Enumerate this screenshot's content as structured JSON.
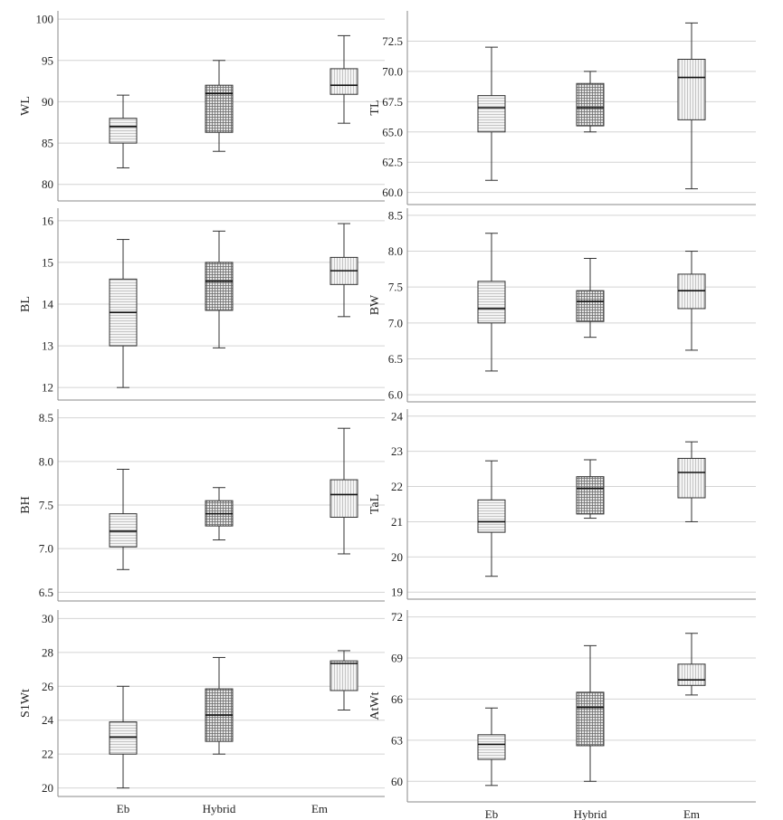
{
  "figure": {
    "categories": [
      "Eb",
      "Hybrid",
      "Em"
    ]
  },
  "colors": {
    "grid": "#d4d4d4",
    "frame": "#8a8a8a",
    "box_fill": "#f4f4f4",
    "box_pattern_light": "#b9b9b9",
    "box_pattern_dark": "#6f6f6f",
    "whisker": "#333333",
    "median": "#111111"
  },
  "chart_data": [
    {
      "type": "box",
      "ylabel": "WL",
      "categories": [
        "Eb",
        "Hybrid",
        "Em"
      ],
      "ylim": [
        78,
        101
      ],
      "yticks": [
        80,
        85,
        90,
        95,
        100
      ],
      "yticklabels": [
        "80",
        "85",
        "90",
        "95",
        "100"
      ],
      "boxes": [
        {
          "category": "Eb",
          "min": 82.0,
          "q1": 85.0,
          "median": 87.0,
          "q3": 88.0,
          "max": 90.8
        },
        {
          "category": "Hybrid",
          "min": 84.0,
          "q1": 86.3,
          "median": 91.0,
          "q3": 92.0,
          "max": 95.0
        },
        {
          "category": "Em",
          "min": 87.4,
          "q1": 90.9,
          "median": 92.0,
          "q3": 94.0,
          "max": 98.0
        }
      ]
    },
    {
      "type": "box",
      "ylabel": "TL",
      "categories": [
        "Eb",
        "Hybrid",
        "Em"
      ],
      "ylim": [
        59.0,
        75.0
      ],
      "yticks": [
        60.0,
        62.5,
        65.0,
        67.5,
        70.0,
        72.5
      ],
      "yticklabels": [
        "60.0",
        "62.5",
        "65.0",
        "67.5",
        "70.0",
        "72.5"
      ],
      "boxes": [
        {
          "category": "Eb",
          "min": 61.0,
          "q1": 65.0,
          "median": 67.0,
          "q3": 68.0,
          "max": 72.0
        },
        {
          "category": "Hybrid",
          "min": 65.0,
          "q1": 65.5,
          "median": 67.0,
          "q3": 69.0,
          "max": 70.0
        },
        {
          "category": "Em",
          "min": 60.3,
          "q1": 66.0,
          "median": 69.5,
          "q3": 71.0,
          "max": 74.0
        }
      ]
    },
    {
      "type": "box",
      "ylabel": "BL",
      "categories": [
        "Eb",
        "Hybrid",
        "Em"
      ],
      "ylim": [
        11.7,
        16.3
      ],
      "yticks": [
        12,
        13,
        14,
        15,
        16
      ],
      "yticklabels": [
        "12",
        "13",
        "14",
        "15",
        "16"
      ],
      "boxes": [
        {
          "category": "Eb",
          "min": 12.0,
          "q1": 13.0,
          "median": 13.8,
          "q3": 14.6,
          "max": 15.55
        },
        {
          "category": "Hybrid",
          "min": 12.95,
          "q1": 13.85,
          "median": 14.55,
          "q3": 15.0,
          "max": 15.75
        },
        {
          "category": "Em",
          "min": 13.7,
          "q1": 14.47,
          "median": 14.8,
          "q3": 15.12,
          "max": 15.93
        }
      ]
    },
    {
      "type": "box",
      "ylabel": "BW",
      "categories": [
        "Eb",
        "Hybrid",
        "Em"
      ],
      "ylim": [
        5.9,
        8.6
      ],
      "yticks": [
        6.0,
        6.5,
        7.0,
        7.5,
        8.0,
        8.5
      ],
      "yticklabels": [
        "6.0",
        "6.5",
        "7.0",
        "7.5",
        "8.0",
        "8.5"
      ],
      "boxes": [
        {
          "category": "Eb",
          "min": 6.33,
          "q1": 7.0,
          "median": 7.2,
          "q3": 7.58,
          "max": 8.25
        },
        {
          "category": "Hybrid",
          "min": 6.8,
          "q1": 7.02,
          "median": 7.3,
          "q3": 7.45,
          "max": 7.9
        },
        {
          "category": "Em",
          "min": 6.62,
          "q1": 7.2,
          "median": 7.45,
          "q3": 7.68,
          "max": 8.0
        }
      ]
    },
    {
      "type": "box",
      "ylabel": "BH",
      "categories": [
        "Eb",
        "Hybrid",
        "Em"
      ],
      "ylim": [
        6.4,
        8.6
      ],
      "yticks": [
        6.5,
        7.0,
        7.5,
        8.0,
        8.5
      ],
      "yticklabels": [
        "6.5",
        "7.0",
        "7.5",
        "8.0",
        "8.5"
      ],
      "boxes": [
        {
          "category": "Eb",
          "min": 6.76,
          "q1": 7.02,
          "median": 7.2,
          "q3": 7.4,
          "max": 7.91
        },
        {
          "category": "Hybrid",
          "min": 7.1,
          "q1": 7.26,
          "median": 7.4,
          "q3": 7.55,
          "max": 7.7
        },
        {
          "category": "Em",
          "min": 6.94,
          "q1": 7.36,
          "median": 7.62,
          "q3": 7.79,
          "max": 8.38
        }
      ]
    },
    {
      "type": "box",
      "ylabel": "TaL",
      "categories": [
        "Eb",
        "Hybrid",
        "Em"
      ],
      "ylim": [
        18.8,
        24.2
      ],
      "yticks": [
        19,
        20,
        21,
        22,
        23,
        24
      ],
      "yticklabels": [
        "19",
        "20",
        "21",
        "22",
        "23",
        "24"
      ],
      "boxes": [
        {
          "category": "Eb",
          "min": 19.45,
          "q1": 20.7,
          "median": 21.0,
          "q3": 21.62,
          "max": 22.73
        },
        {
          "category": "Hybrid",
          "min": 21.1,
          "q1": 21.22,
          "median": 21.95,
          "q3": 22.28,
          "max": 22.76
        },
        {
          "category": "Em",
          "min": 21.0,
          "q1": 21.68,
          "median": 22.4,
          "q3": 22.8,
          "max": 23.27
        }
      ]
    },
    {
      "type": "box",
      "ylabel": "S1Wt",
      "categories": [
        "Eb",
        "Hybrid",
        "Em"
      ],
      "ylim": [
        19.5,
        30.5
      ],
      "yticks": [
        20,
        22,
        24,
        26,
        28,
        30
      ],
      "yticklabels": [
        "20",
        "22",
        "24",
        "26",
        "28",
        "30"
      ],
      "boxes": [
        {
          "category": "Eb",
          "min": 20.0,
          "q1": 22.0,
          "median": 23.0,
          "q3": 23.9,
          "max": 26.0
        },
        {
          "category": "Hybrid",
          "min": 22.0,
          "q1": 22.75,
          "median": 24.3,
          "q3": 25.85,
          "max": 27.7
        },
        {
          "category": "Em",
          "min": 24.6,
          "q1": 25.75,
          "median": 27.35,
          "q3": 27.5,
          "max": 28.1
        }
      ]
    },
    {
      "type": "box",
      "ylabel": "AtWt",
      "categories": [
        "Eb",
        "Hybrid",
        "Em"
      ],
      "ylim": [
        58.5,
        72.5
      ],
      "yticks": [
        60,
        63,
        66,
        69,
        72
      ],
      "yticklabels": [
        "60",
        "63",
        "66",
        "69",
        "72"
      ],
      "boxes": [
        {
          "category": "Eb",
          "min": 59.7,
          "q1": 61.6,
          "median": 62.7,
          "q3": 63.4,
          "max": 65.35
        },
        {
          "category": "Hybrid",
          "min": 60.0,
          "q1": 62.6,
          "median": 65.4,
          "q3": 66.5,
          "max": 69.9
        },
        {
          "category": "Em",
          "min": 66.3,
          "q1": 67.0,
          "median": 67.4,
          "q3": 68.55,
          "max": 70.8
        }
      ]
    }
  ]
}
